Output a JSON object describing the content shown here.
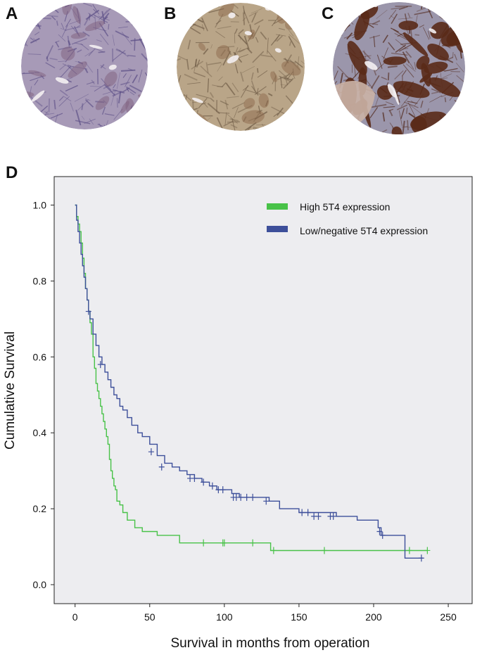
{
  "panels": {
    "a": {
      "letter": "A"
    },
    "b": {
      "letter": "B"
    },
    "c": {
      "letter": "C"
    },
    "d": {
      "letter": "D"
    }
  },
  "images": {
    "a": {
      "description_name": "low-staining-tissue",
      "base_color": "#a79ab7",
      "stroke_color": "#5b4e86",
      "accent": "#7f5f7e"
    },
    "b": {
      "description_name": "moderate-staining-tissue",
      "base_color": "#b9a588",
      "stroke_color": "#6e5b46",
      "accent": "#8d6a4c"
    },
    "c": {
      "description_name": "high-staining-tissue",
      "base_color": "#9b96ab",
      "stroke_color": "#4e2415",
      "accent": "#5a2a18"
    }
  },
  "chart_data": {
    "type": "line",
    "subtype": "kaplan-meier",
    "xlabel": "Survival in months from operation",
    "ylabel": "Cumulative Survival",
    "xlim": [
      -14,
      266
    ],
    "ylim": [
      -0.05,
      1.075
    ],
    "x_ticks": [
      0,
      50,
      100,
      150,
      200,
      250
    ],
    "y_ticks": [
      "0.0",
      "0.2",
      "0.4",
      "0.6",
      "0.8",
      "1.0"
    ],
    "legend_position": "top-right",
    "background": "#ededf0",
    "series": [
      {
        "name": "High 5T4 expression",
        "color": "#48c248",
        "points": [
          [
            0,
            1.0
          ],
          [
            1,
            0.97
          ],
          [
            2,
            0.95
          ],
          [
            3,
            0.93
          ],
          [
            4,
            0.9
          ],
          [
            5,
            0.86
          ],
          [
            6,
            0.82
          ],
          [
            7,
            0.78
          ],
          [
            8,
            0.75
          ],
          [
            9,
            0.72
          ],
          [
            10,
            0.69
          ],
          [
            11,
            0.66
          ],
          [
            12,
            0.6
          ],
          [
            13,
            0.57
          ],
          [
            14,
            0.53
          ],
          [
            15,
            0.51
          ],
          [
            16,
            0.49
          ],
          [
            17,
            0.47
          ],
          [
            18,
            0.45
          ],
          [
            19,
            0.43
          ],
          [
            20,
            0.41
          ],
          [
            21,
            0.39
          ],
          [
            22,
            0.37
          ],
          [
            23,
            0.33
          ],
          [
            24,
            0.3
          ],
          [
            25,
            0.28
          ],
          [
            26,
            0.26
          ],
          [
            27,
            0.25
          ],
          [
            28,
            0.22
          ],
          [
            30,
            0.21
          ],
          [
            32,
            0.19
          ],
          [
            35,
            0.17
          ],
          [
            40,
            0.15
          ],
          [
            45,
            0.14
          ],
          [
            55,
            0.13
          ],
          [
            70,
            0.11
          ],
          [
            95,
            0.11
          ],
          [
            131,
            0.09
          ],
          [
            236,
            0.09
          ]
        ],
        "censored": [
          [
            86,
            0.11
          ],
          [
            99,
            0.11
          ],
          [
            100,
            0.11
          ],
          [
            119,
            0.11
          ],
          [
            133,
            0.09
          ],
          [
            167,
            0.09
          ],
          [
            224,
            0.09
          ],
          [
            236,
            0.09
          ]
        ]
      },
      {
        "name": "Low/negative 5T4 expression",
        "color": "#3d4f9a",
        "points": [
          [
            0,
            1.0
          ],
          [
            1,
            0.96
          ],
          [
            2,
            0.93
          ],
          [
            3,
            0.9
          ],
          [
            4,
            0.87
          ],
          [
            5,
            0.84
          ],
          [
            6,
            0.81
          ],
          [
            7,
            0.78
          ],
          [
            8,
            0.75
          ],
          [
            9,
            0.72
          ],
          [
            10,
            0.7
          ],
          [
            12,
            0.66
          ],
          [
            14,
            0.63
          ],
          [
            16,
            0.6
          ],
          [
            18,
            0.58
          ],
          [
            20,
            0.56
          ],
          [
            22,
            0.54
          ],
          [
            24,
            0.52
          ],
          [
            26,
            0.5
          ],
          [
            28,
            0.49
          ],
          [
            30,
            0.47
          ],
          [
            32,
            0.46
          ],
          [
            35,
            0.44
          ],
          [
            38,
            0.42
          ],
          [
            42,
            0.4
          ],
          [
            45,
            0.39
          ],
          [
            50,
            0.37
          ],
          [
            55,
            0.34
          ],
          [
            60,
            0.32
          ],
          [
            65,
            0.31
          ],
          [
            70,
            0.3
          ],
          [
            75,
            0.29
          ],
          [
            80,
            0.28
          ],
          [
            85,
            0.27
          ],
          [
            90,
            0.26
          ],
          [
            95,
            0.25
          ],
          [
            105,
            0.24
          ],
          [
            110,
            0.23
          ],
          [
            130,
            0.22
          ],
          [
            137,
            0.2
          ],
          [
            150,
            0.19
          ],
          [
            175,
            0.18
          ],
          [
            189,
            0.17
          ],
          [
            203,
            0.15
          ],
          [
            205,
            0.13
          ],
          [
            221,
            0.07
          ],
          [
            233,
            0.07
          ]
        ],
        "censored": [
          [
            9,
            0.72
          ],
          [
            17,
            0.58
          ],
          [
            51,
            0.35
          ],
          [
            58,
            0.31
          ],
          [
            77,
            0.28
          ],
          [
            80,
            0.28
          ],
          [
            86,
            0.27
          ],
          [
            92,
            0.26
          ],
          [
            96,
            0.25
          ],
          [
            99,
            0.25
          ],
          [
            106,
            0.23
          ],
          [
            108,
            0.23
          ],
          [
            111,
            0.23
          ],
          [
            115,
            0.23
          ],
          [
            119,
            0.23
          ],
          [
            128,
            0.22
          ],
          [
            152,
            0.19
          ],
          [
            156,
            0.19
          ],
          [
            160,
            0.18
          ],
          [
            163,
            0.18
          ],
          [
            171,
            0.18
          ],
          [
            173,
            0.18
          ],
          [
            204,
            0.14
          ],
          [
            206,
            0.13
          ],
          [
            232,
            0.07
          ]
        ]
      }
    ]
  }
}
